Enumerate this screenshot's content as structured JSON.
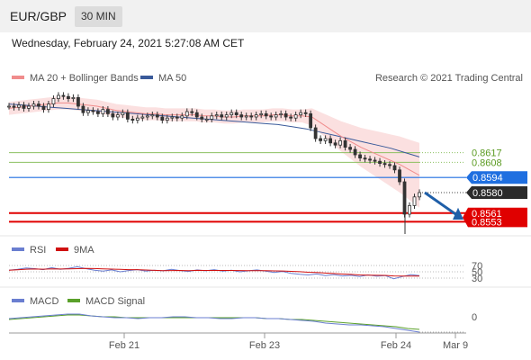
{
  "header": {
    "pair": "EUR/GBP",
    "timeframe": "30 MIN"
  },
  "datetime": "Wednesday, February 24, 2021 5:27:08 AM CET",
  "colors": {
    "ma20": "#f08c8c",
    "ma50": "#3a5a9a",
    "bands": "#f9d6d6",
    "support": "#e00000",
    "pivot": "#1f6fe0",
    "resistance": "#8cc060",
    "price": "#333333",
    "arrow": "#1f5fa8",
    "rsi": "#6a7ed0",
    "rsi_ma": "#d01010",
    "macd": "#6a7ed0",
    "macd_signal": "#5aa02a"
  },
  "chart_data": {
    "type": "line",
    "title": "EUR/GBP",
    "timeframe": "30 MIN",
    "legend": [
      {
        "name": "MA 20 + Bollinger Bands",
        "color": "#f08c8c"
      },
      {
        "name": "MA 50",
        "color": "#3a5a9a"
      }
    ],
    "attribution": "Research © 2021 Trading Central",
    "x_ticks": [
      "Feb 21",
      "Feb 23",
      "Feb 24",
      "Mar 9"
    ],
    "y_range": [
      0.854,
      0.8675
    ],
    "levels": [
      {
        "label": "0.8617",
        "value": 0.8617,
        "kind": "resistance"
      },
      {
        "label": "0.8608",
        "value": 0.8608,
        "kind": "resistance"
      },
      {
        "label": "0.8594",
        "value": 0.8594,
        "kind": "pivot"
      },
      {
        "label": "0.8580",
        "value": 0.858,
        "kind": "last"
      },
      {
        "label": "0.8561",
        "value": 0.8561,
        "kind": "support"
      },
      {
        "label": "0.8553",
        "value": 0.8553,
        "kind": "support"
      }
    ],
    "series": [
      {
        "name": "Price",
        "values": [
          0.866,
          0.8659,
          0.8661,
          0.8658,
          0.866,
          0.8662,
          0.866,
          0.8657,
          0.8662,
          0.8667,
          0.867,
          0.8669,
          0.8667,
          0.8668,
          0.866,
          0.8654,
          0.8656,
          0.8655,
          0.8653,
          0.8657,
          0.8653,
          0.865,
          0.8652,
          0.8654,
          0.8648,
          0.8647,
          0.8649,
          0.865,
          0.8651,
          0.8652,
          0.865,
          0.8647,
          0.8649,
          0.865,
          0.8649,
          0.8651,
          0.8655,
          0.8654,
          0.865,
          0.8648,
          0.8648,
          0.8651,
          0.8652,
          0.865,
          0.8652,
          0.8654,
          0.8652,
          0.865,
          0.8651,
          0.865,
          0.8652,
          0.8653,
          0.8651,
          0.865,
          0.8652,
          0.8653,
          0.865,
          0.8649,
          0.8652,
          0.8654,
          0.8653,
          0.864,
          0.863,
          0.8628,
          0.863,
          0.8626,
          0.8624,
          0.8628,
          0.8622,
          0.862,
          0.8615,
          0.8612,
          0.8611,
          0.861,
          0.8609,
          0.8607,
          0.8606,
          0.8605,
          0.8601,
          0.859,
          0.856,
          0.8568,
          0.8576,
          0.858
        ]
      },
      {
        "name": "MA 20",
        "values": [
          0.8658,
          0.8659,
          0.866,
          0.8661,
          0.8662,
          0.8663,
          0.8663,
          0.8662,
          0.8661,
          0.866,
          0.8658,
          0.8656,
          0.8655,
          0.8654,
          0.8653,
          0.8653,
          0.8652,
          0.8652,
          0.8652,
          0.8652,
          0.8651,
          0.8651,
          0.865,
          0.865,
          0.8651,
          0.8651,
          0.8651,
          0.8652,
          0.8652,
          0.8651,
          0.8651,
          0.865,
          0.8644,
          0.8638,
          0.8632,
          0.8627,
          0.8622,
          0.8618,
          0.8614,
          0.861,
          0.8606,
          0.8601,
          0.8596
        ]
      },
      {
        "name": "MA 50",
        "values": [
          0.8662,
          0.8661,
          0.866,
          0.8659,
          0.8658,
          0.8657,
          0.8656,
          0.8655,
          0.8654,
          0.8653,
          0.8652,
          0.8651,
          0.865,
          0.8649,
          0.8648,
          0.8647,
          0.8646,
          0.8645,
          0.8644,
          0.8643,
          0.8641,
          0.8639,
          0.8636,
          0.8633,
          0.863,
          0.8627,
          0.8624,
          0.8621,
          0.8617,
          0.8613
        ]
      }
    ],
    "rsi": {
      "legend": [
        {
          "name": "RSI",
          "color": "#6a7ed0"
        },
        {
          "name": "9MA",
          "color": "#d01010"
        }
      ],
      "ticks": [
        "70",
        "50",
        "30"
      ]
    },
    "macd": {
      "legend": [
        {
          "name": "MACD",
          "color": "#6a7ed0"
        },
        {
          "name": "MACD Signal",
          "color": "#5aa02a"
        }
      ],
      "ticks": [
        "0"
      ]
    }
  }
}
